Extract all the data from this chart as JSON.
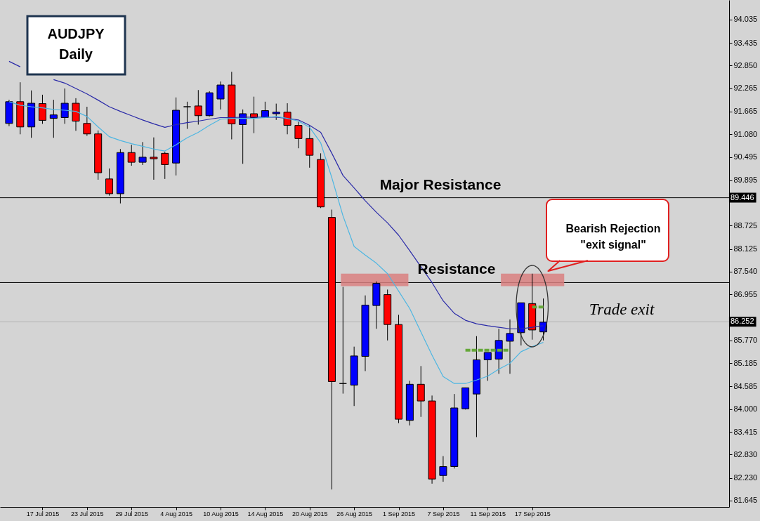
{
  "chart_data": {
    "type": "candlestick",
    "title": "AUDJPY",
    "subtitle": "Daily",
    "categories": [
      null,
      null,
      null,
      "17 Jul 2015",
      null,
      null,
      null,
      "23 Jul 2015",
      null,
      null,
      null,
      "29 Jul 2015",
      null,
      null,
      null,
      "4 Aug 2015",
      null,
      null,
      null,
      "10 Aug 2015",
      null,
      null,
      null,
      "14 Aug 2015",
      null,
      null,
      null,
      "20 Aug 2015",
      null,
      null,
      null,
      "26 Aug 2015",
      null,
      null,
      null,
      "1 Sep 2015",
      null,
      null,
      null,
      "7 Sep 2015",
      null,
      null,
      null,
      "11 Sep 2015",
      null,
      null,
      null,
      "17 Sep 2015",
      null
    ],
    "ohlc": [
      [
        91.36,
        91.97,
        91.29,
        91.92
      ],
      [
        91.92,
        92.42,
        91.08,
        91.27
      ],
      [
        91.27,
        92.21,
        90.99,
        91.88
      ],
      [
        91.87,
        92.1,
        91.35,
        91.44
      ],
      [
        91.49,
        91.97,
        90.99,
        91.58
      ],
      [
        91.51,
        92.26,
        91.35,
        91.88
      ],
      [
        91.88,
        92.01,
        91.17,
        91.42
      ],
      [
        91.36,
        91.79,
        91.04,
        91.09
      ],
      [
        91.09,
        91.18,
        89.91,
        90.09
      ],
      [
        89.93,
        90.2,
        89.5,
        89.55
      ],
      [
        89.55,
        90.7,
        89.3,
        90.61
      ],
      [
        90.61,
        90.81,
        90.27,
        90.36
      ],
      [
        90.36,
        90.88,
        90.29,
        90.49
      ],
      [
        90.49,
        91.0,
        89.91,
        90.45
      ],
      [
        90.59,
        90.63,
        89.93,
        90.3
      ],
      [
        90.34,
        92.03,
        90.02,
        91.7
      ],
      [
        91.79,
        91.92,
        91.22,
        91.79
      ],
      [
        91.81,
        92.22,
        91.33,
        91.56
      ],
      [
        91.56,
        92.19,
        91.54,
        92.15
      ],
      [
        91.99,
        92.44,
        91.72,
        92.35
      ],
      [
        92.35,
        92.69,
        90.95,
        91.35
      ],
      [
        91.33,
        91.72,
        90.32,
        91.61
      ],
      [
        91.61,
        92.05,
        91.11,
        91.51
      ],
      [
        91.52,
        91.92,
        91.51,
        91.69
      ],
      [
        91.61,
        91.87,
        91.45,
        91.65
      ],
      [
        91.65,
        91.88,
        91.08,
        91.31
      ],
      [
        91.31,
        91.4,
        90.72,
        90.97
      ],
      [
        90.97,
        91.31,
        90.22,
        90.54
      ],
      [
        90.43,
        90.59,
        89.18,
        89.21
      ],
      [
        88.94,
        89.14,
        81.93,
        84.71
      ],
      [
        84.66,
        87.15,
        84.4,
        84.66
      ],
      [
        84.62,
        85.61,
        84.08,
        85.37
      ],
      [
        85.36,
        86.93,
        84.98,
        86.68
      ],
      [
        86.67,
        87.29,
        86.07,
        87.24
      ],
      [
        86.95,
        87.08,
        85.77,
        86.18
      ],
      [
        86.18,
        86.43,
        83.64,
        83.74
      ],
      [
        83.71,
        84.73,
        83.58,
        84.64
      ],
      [
        84.64,
        85.11,
        83.8,
        84.21
      ],
      [
        84.21,
        84.35,
        82.08,
        82.2
      ],
      [
        82.29,
        82.79,
        82.13,
        82.52
      ],
      [
        82.52,
        84.39,
        82.47,
        84.03
      ],
      [
        84.01,
        84.55,
        83.99,
        84.55
      ],
      [
        84.39,
        85.88,
        83.28,
        85.27
      ],
      [
        85.27,
        85.46,
        84.73,
        85.46
      ],
      [
        85.29,
        86.07,
        84.91,
        85.77
      ],
      [
        85.75,
        86.31,
        84.91,
        85.95
      ],
      [
        85.97,
        86.74,
        85.64,
        86.74
      ],
      [
        86.72,
        87.49,
        85.79,
        86.04
      ],
      [
        85.99,
        86.85,
        85.77,
        86.24
      ]
    ],
    "colors": [
      "#0000ff",
      "#ff0000",
      "#0000ff",
      "#ff0000",
      "#0000ff",
      "#0000ff",
      "#ff0000",
      "#ff0000",
      "#ff0000",
      "#ff0000",
      "#0000ff",
      "#ff0000",
      "#0000ff",
      "#ff0000",
      "#ff0000",
      "#0000ff",
      "#000000",
      "#ff0000",
      "#0000ff",
      "#0000ff",
      "#ff0000",
      "#0000ff",
      "#ff0000",
      "#0000ff",
      "#0000ff",
      "#ff0000",
      "#ff0000",
      "#ff0000",
      "#ff0000",
      "#ff0000",
      "#000000",
      "#0000ff",
      "#0000ff",
      "#0000ff",
      "#ff0000",
      "#ff0000",
      "#0000ff",
      "#ff0000",
      "#ff0000",
      "#0000ff",
      "#0000ff",
      "#0000ff",
      "#0000ff",
      "#0000ff",
      "#0000ff",
      "#0000ff",
      "#0000ff",
      "#ff0000",
      "#0000ff"
    ],
    "series": [
      {
        "type": "line",
        "color": "#2a2aa8",
        "values": [
          92.96,
          92.82,
          null,
          null,
          92.49,
          92.4,
          92.26,
          92.12,
          91.96,
          91.79,
          91.67,
          91.56,
          91.45,
          91.35,
          91.26,
          91.33,
          91.38,
          91.42,
          91.47,
          91.51,
          91.51,
          91.52,
          91.52,
          91.52,
          91.52,
          91.49,
          91.45,
          91.31,
          91.13,
          90.59,
          90.02,
          89.7,
          89.37,
          89.07,
          88.8,
          88.48,
          88.08,
          87.67,
          87.26,
          86.79,
          86.47,
          86.29,
          86.2,
          86.15,
          86.11,
          86.07,
          86.07,
          86.11,
          86.15
        ]
      },
      {
        "type": "line",
        "color": "#4db6e2",
        "values": [
          91.92,
          91.83,
          91.79,
          91.76,
          91.72,
          91.7,
          91.67,
          91.54,
          91.27,
          91.02,
          90.92,
          90.84,
          90.77,
          90.7,
          90.65,
          90.81,
          90.99,
          91.13,
          91.31,
          91.47,
          91.49,
          91.49,
          91.49,
          91.51,
          91.54,
          91.49,
          91.42,
          91.26,
          90.86,
          89.96,
          88.98,
          88.19,
          87.97,
          87.76,
          87.49,
          87.04,
          86.59,
          85.99,
          85.39,
          84.84,
          84.66,
          84.66,
          84.75,
          84.85,
          85.03,
          85.18,
          85.48,
          85.61,
          85.72
        ]
      },
      {
        "type": "line",
        "color": "#66a83a",
        "line_style": "dashed",
        "values": [
          null,
          null,
          null,
          null,
          null,
          null,
          null,
          null,
          null,
          null,
          null,
          null,
          null,
          null,
          null,
          null,
          null,
          null,
          null,
          null,
          null,
          null,
          null,
          null,
          null,
          null,
          null,
          null,
          null,
          null,
          null,
          null,
          null,
          null,
          null,
          null,
          null,
          null,
          null,
          null,
          null,
          85.52,
          85.52,
          85.52,
          85.52,
          85.52,
          null,
          null,
          null
        ]
      },
      {
        "type": "line",
        "color": "#66a83a",
        "line_style": "dashed",
        "values": [
          null,
          null,
          null,
          null,
          null,
          null,
          null,
          null,
          null,
          null,
          null,
          null,
          null,
          null,
          null,
          null,
          null,
          null,
          null,
          null,
          null,
          null,
          null,
          null,
          null,
          null,
          null,
          null,
          null,
          null,
          null,
          null,
          null,
          null,
          null,
          null,
          null,
          null,
          null,
          null,
          null,
          null,
          null,
          null,
          null,
          null,
          null,
          86.63,
          86.63
        ]
      }
    ],
    "ylim": [
      81.48,
      94.54
    ],
    "yticks": [
      81.645,
      {
        "value": 82.23,
        "label": "82.230"
      },
      {
        "value": 82.83,
        "label": "82.830"
      },
      83.415,
      {
        "value": 84,
        "label": "84.000"
      },
      84.585,
      85.185,
      {
        "value": 85.77,
        "label": "85.770"
      },
      86.955,
      {
        "value": 87.54,
        "label": "87.540"
      },
      88.125,
      88.725,
      89.895,
      90.495,
      {
        "value": 91.08,
        "label": "91.080"
      },
      91.665,
      92.265,
      {
        "value": 92.85,
        "label": "92.850"
      },
      93.435,
      94.035
    ],
    "ref_lines": [
      {
        "axis": "y",
        "value": 89.446,
        "label": "89.446",
        "color": "#000000"
      },
      {
        "axis": "y",
        "value": 87.26,
        "color": "#000000"
      },
      {
        "axis": "y",
        "value": 86.252,
        "label": "86.252",
        "color": "#b4b4b4"
      }
    ],
    "bands": [
      {
        "axis": "y",
        "from": 87.17,
        "to": 87.49,
        "color": "#d98080"
      },
      {
        "axis": "y",
        "from": 87.17,
        "to": 87.49,
        "color": "#d98080"
      }
    ],
    "annotations": [
      {
        "text": "Major Resistance",
        "y": 89.446
      },
      {
        "text": "Resistance",
        "y": 87.26
      },
      "Bearish Rejection\n\"exit signal\"",
      "Trade exit"
    ]
  }
}
